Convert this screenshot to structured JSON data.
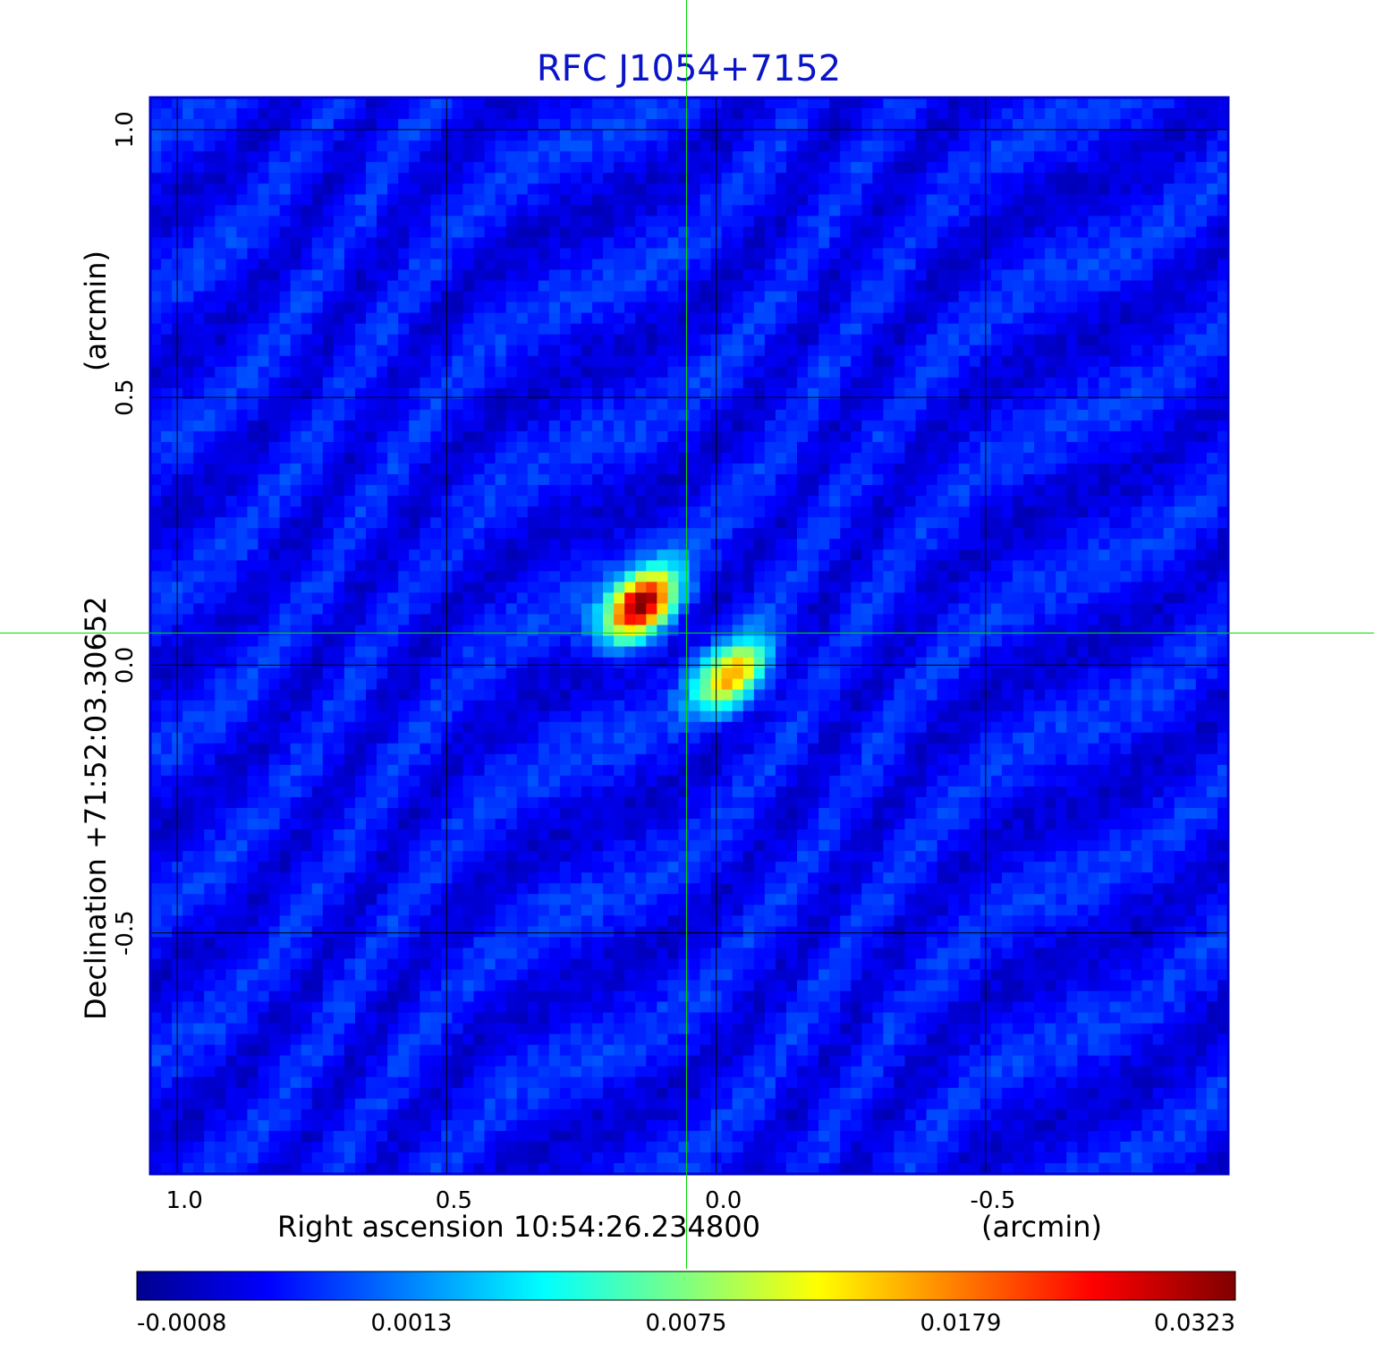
{
  "chart_data": {
    "type": "heatmap",
    "title": "RFC J1054+7152",
    "xlabel": "Right ascension  10:54:26.234800",
    "xunit": "(arcmin)",
    "ylabel": "Declination  +71:52:03.30652",
    "yunit": "(arcmin)",
    "xlim": [
      1.05,
      -0.95
    ],
    "ylim": [
      -0.95,
      1.06
    ],
    "x_ticks": [
      {
        "value": 1.0,
        "label": "1.0"
      },
      {
        "value": 0.5,
        "label": "0.5"
      },
      {
        "value": 0.0,
        "label": "0.0"
      },
      {
        "value": -0.5,
        "label": "-0.5"
      }
    ],
    "y_ticks": [
      {
        "value": 1.0,
        "label": "1.0"
      },
      {
        "value": 0.5,
        "label": "0.5"
      },
      {
        "value": 0.0,
        "label": "0.0"
      },
      {
        "value": -0.5,
        "label": "-0.5"
      }
    ],
    "grid": true,
    "colormap": "jet",
    "colorbar": {
      "position": "bottom",
      "labels": [
        "-0.0008",
        "0.0013",
        "0.0075",
        "0.0179",
        "0.0323"
      ]
    },
    "crosshair": {
      "x": 0.055,
      "y": 0.06
    },
    "sources": [
      {
        "x": 0.14,
        "y": 0.11,
        "peak": 0.0323
      },
      {
        "x": -0.03,
        "y": -0.02,
        "peak": 0.018
      }
    ],
    "colors": {
      "frame": "#0000cc",
      "title": "#0a14c8",
      "crosshair": "#00dd00",
      "grid": "#000000"
    }
  }
}
